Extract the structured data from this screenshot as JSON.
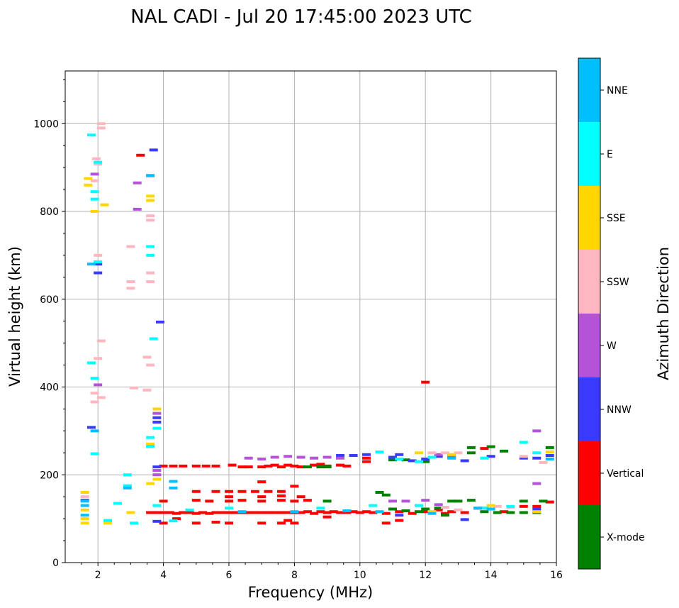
{
  "chart_data": {
    "type": "scatter",
    "title": "NAL CADI - Jul 20 17:45:00 2023 UTC",
    "xlabel": "Frequency (MHz)",
    "ylabel": "Virtual height (km)",
    "xlim": [
      1,
      16
    ],
    "ylim": [
      0,
      1120
    ],
    "xticks": [
      2,
      4,
      6,
      8,
      10,
      12,
      14,
      16
    ],
    "yticks": [
      0,
      200,
      400,
      600,
      800,
      1000
    ],
    "grid": true,
    "colorbar": {
      "label": "Azimuth Direction",
      "categories": [
        {
          "name": "X-mode",
          "color": "#008000"
        },
        {
          "name": "Vertical",
          "color": "#ff0000"
        },
        {
          "name": "NNW",
          "color": "#3a3aff"
        },
        {
          "name": "W",
          "color": "#b452d8"
        },
        {
          "name": "SSW",
          "color": "#ffb6c1"
        },
        {
          "name": "SSE",
          "color": "#ffd700"
        },
        {
          "name": "E",
          "color": "#00ffff"
        },
        {
          "name": "NNE",
          "color": "#00bfff"
        }
      ]
    },
    "series": [
      {
        "name": "Vertical",
        "points": [
          [
            3.6,
            114
          ],
          [
            3.8,
            114
          ],
          [
            4.0,
            114
          ],
          [
            4.2,
            114
          ],
          [
            4.4,
            112
          ],
          [
            4.6,
            114
          ],
          [
            4.8,
            114
          ],
          [
            5.0,
            112
          ],
          [
            5.2,
            114
          ],
          [
            5.4,
            112
          ],
          [
            5.6,
            114
          ],
          [
            5.8,
            114
          ],
          [
            6.0,
            114
          ],
          [
            6.2,
            114
          ],
          [
            6.4,
            114
          ],
          [
            6.6,
            114
          ],
          [
            6.8,
            114
          ],
          [
            7.0,
            114
          ],
          [
            7.2,
            114
          ],
          [
            7.4,
            114
          ],
          [
            7.6,
            114
          ],
          [
            7.8,
            114
          ],
          [
            8.0,
            114
          ],
          [
            8.2,
            114
          ],
          [
            8.4,
            116
          ],
          [
            8.6,
            112
          ],
          [
            8.8,
            116
          ],
          [
            9.0,
            114
          ],
          [
            9.2,
            116
          ],
          [
            9.4,
            114
          ],
          [
            9.6,
            114
          ],
          [
            9.8,
            116
          ],
          [
            10.0,
            114
          ],
          [
            10.2,
            116
          ],
          [
            10.4,
            114
          ],
          [
            10.8,
            112
          ],
          [
            11.2,
            116
          ],
          [
            11.6,
            112
          ],
          [
            12.0,
            116
          ],
          [
            12.4,
            120
          ],
          [
            12.6,
            112
          ],
          [
            12.8,
            116
          ],
          [
            13.2,
            114
          ],
          [
            13.6,
            124
          ],
          [
            13.8,
            124
          ],
          [
            14.4,
            116
          ],
          [
            15.0,
            128
          ],
          [
            15.4,
            128
          ],
          [
            15.8,
            138
          ],
          [
            4.0,
            220
          ],
          [
            4.3,
            220
          ],
          [
            4.6,
            220
          ],
          [
            5.0,
            220
          ],
          [
            5.3,
            220
          ],
          [
            5.6,
            220
          ],
          [
            6.1,
            222
          ],
          [
            6.4,
            218
          ],
          [
            6.6,
            218
          ],
          [
            7.0,
            218
          ],
          [
            7.2,
            220
          ],
          [
            7.4,
            222
          ],
          [
            7.6,
            218
          ],
          [
            7.8,
            222
          ],
          [
            8.0,
            220
          ],
          [
            8.2,
            218
          ],
          [
            8.6,
            222
          ],
          [
            8.8,
            224
          ],
          [
            9.0,
            220
          ],
          [
            9.4,
            222
          ],
          [
            9.6,
            220
          ],
          [
            10.2,
            230
          ],
          [
            10.2,
            238
          ],
          [
            5.0,
            142
          ],
          [
            5.4,
            140
          ],
          [
            6.0,
            140
          ],
          [
            6.4,
            142
          ],
          [
            7.0,
            140
          ],
          [
            7.6,
            142
          ],
          [
            8.0,
            140
          ],
          [
            8.4,
            142
          ],
          [
            6.0,
            150
          ],
          [
            7.0,
            150
          ],
          [
            7.6,
            152
          ],
          [
            8.2,
            150
          ],
          [
            5.0,
            162
          ],
          [
            6.0,
            162
          ],
          [
            6.4,
            162
          ],
          [
            6.8,
            162
          ],
          [
            7.2,
            162
          ],
          [
            7.6,
            162
          ],
          [
            8.0,
            174
          ],
          [
            7.0,
            184
          ],
          [
            5.6,
            162
          ],
          [
            4.0,
            90
          ],
          [
            5.0,
            90
          ],
          [
            5.6,
            92
          ],
          [
            6.0,
            90
          ],
          [
            7.0,
            90
          ],
          [
            7.6,
            90
          ],
          [
            7.8,
            96
          ],
          [
            8.0,
            90
          ],
          [
            10.8,
            90
          ],
          [
            11.2,
            96
          ],
          [
            12.0,
            411
          ],
          [
            3.3,
            928
          ],
          [
            4.0,
            140
          ],
          [
            4.4,
            100
          ],
          [
            9.0,
            104
          ],
          [
            13.8,
            260
          ]
        ]
      },
      {
        "name": "X-mode",
        "points": [
          [
            8.4,
            218
          ],
          [
            8.8,
            218
          ],
          [
            9.0,
            218
          ],
          [
            11.0,
            234
          ],
          [
            11.4,
            234
          ],
          [
            12.0,
            230
          ],
          [
            13.4,
            262
          ],
          [
            13.4,
            250
          ],
          [
            14.0,
            264
          ],
          [
            14.4,
            254
          ],
          [
            15.8,
            262
          ],
          [
            11.0,
            122
          ],
          [
            11.4,
            118
          ],
          [
            11.8,
            116
          ],
          [
            12.0,
            122
          ],
          [
            12.4,
            124
          ],
          [
            12.8,
            140
          ],
          [
            13.0,
            140
          ],
          [
            13.4,
            142
          ],
          [
            13.8,
            116
          ],
          [
            14.2,
            114
          ],
          [
            14.6,
            114
          ],
          [
            15.0,
            114
          ],
          [
            15.4,
            114
          ],
          [
            15.0,
            140
          ],
          [
            15.6,
            140
          ],
          [
            10.6,
            160
          ],
          [
            10.8,
            154
          ],
          [
            9.0,
            140
          ],
          [
            12.6,
            108
          ]
        ]
      },
      {
        "name": "NNW",
        "points": [
          [
            9.4,
            244
          ],
          [
            9.8,
            244
          ],
          [
            10.2,
            246
          ],
          [
            11.0,
            240
          ],
          [
            11.2,
            246
          ],
          [
            11.6,
            232
          ],
          [
            12.0,
            236
          ],
          [
            12.4,
            242
          ],
          [
            12.8,
            240
          ],
          [
            13.2,
            232
          ],
          [
            14.0,
            242
          ],
          [
            15.0,
            238
          ],
          [
            15.4,
            238
          ],
          [
            15.8,
            244
          ],
          [
            3.8,
            94
          ],
          [
            3.8,
            218
          ],
          [
            3.8,
            320
          ],
          [
            3.8,
            330
          ],
          [
            2.0,
            660
          ],
          [
            2.0,
            680
          ],
          [
            3.7,
            940
          ],
          [
            3.9,
            548
          ],
          [
            1.8,
            308
          ],
          [
            1.6,
            142
          ],
          [
            11.2,
            108
          ],
          [
            13.2,
            98
          ],
          [
            15.4,
            122
          ]
        ]
      },
      {
        "name": "W",
        "points": [
          [
            6.6,
            238
          ],
          [
            7.0,
            236
          ],
          [
            7.4,
            240
          ],
          [
            7.8,
            242
          ],
          [
            8.2,
            240
          ],
          [
            8.6,
            238
          ],
          [
            9.0,
            240
          ],
          [
            9.4,
            238
          ],
          [
            12.4,
            246
          ],
          [
            12.8,
            244
          ],
          [
            15.4,
            300
          ],
          [
            15.4,
            180
          ],
          [
            3.8,
            210
          ],
          [
            3.8,
            200
          ],
          [
            3.8,
            340
          ],
          [
            2.0,
            405
          ],
          [
            11.0,
            140
          ],
          [
            11.4,
            140
          ],
          [
            12.0,
            142
          ],
          [
            12.4,
            132
          ],
          [
            3.2,
            865
          ],
          [
            3.2,
            805
          ],
          [
            1.9,
            885
          ]
        ]
      },
      {
        "name": "SSW",
        "points": [
          [
            2.1,
            1000
          ],
          [
            2.1,
            990
          ],
          [
            1.95,
            920
          ],
          [
            2.0,
            908
          ],
          [
            1.9,
            870
          ],
          [
            3.6,
            880
          ],
          [
            3.6,
            780
          ],
          [
            3.6,
            790
          ],
          [
            3.6,
            660
          ],
          [
            3.6,
            640
          ],
          [
            2.0,
            700
          ],
          [
            2.1,
            505
          ],
          [
            2.0,
            465
          ],
          [
            3.5,
            468
          ],
          [
            3.6,
            450
          ],
          [
            1.9,
            386
          ],
          [
            1.9,
            366
          ],
          [
            2.1,
            376
          ],
          [
            3.0,
            720
          ],
          [
            3.0,
            640
          ],
          [
            3.0,
            625
          ],
          [
            3.1,
            398
          ],
          [
            3.5,
            393
          ],
          [
            12.2,
            250
          ],
          [
            12.6,
            250
          ],
          [
            13.0,
            250
          ],
          [
            15.0,
            242
          ],
          [
            15.6,
            228
          ],
          [
            1.6,
            150
          ],
          [
            12.6,
            126
          ],
          [
            14.2,
            128
          ],
          [
            13.0,
            120
          ],
          [
            14.6,
            126
          ]
        ]
      },
      {
        "name": "SSE",
        "points": [
          [
            1.6,
            90
          ],
          [
            1.6,
            100
          ],
          [
            1.6,
            120
          ],
          [
            1.6,
            160
          ],
          [
            1.7,
            875
          ],
          [
            1.7,
            860
          ],
          [
            1.9,
            800
          ],
          [
            2.2,
            815
          ],
          [
            3.6,
            835
          ],
          [
            3.6,
            825
          ],
          [
            3.6,
            180
          ],
          [
            3.8,
            190
          ],
          [
            3.8,
            350
          ],
          [
            2.3,
            90
          ],
          [
            3.6,
            270
          ],
          [
            3.0,
            114
          ],
          [
            11.8,
            250
          ],
          [
            12.8,
            246
          ],
          [
            15.8,
            252
          ],
          [
            15.4,
            116
          ],
          [
            14.0,
            130
          ],
          [
            12.2,
            116
          ]
        ]
      },
      {
        "name": "E",
        "points": [
          [
            1.8,
            974
          ],
          [
            2.0,
            912
          ],
          [
            1.9,
            845
          ],
          [
            1.9,
            828
          ],
          [
            2.0,
            685
          ],
          [
            1.9,
            420
          ],
          [
            1.8,
            455
          ],
          [
            3.6,
            700
          ],
          [
            3.6,
            720
          ],
          [
            3.7,
            510
          ],
          [
            3.6,
            285
          ],
          [
            3.6,
            265
          ],
          [
            3.8,
            306
          ],
          [
            1.9,
            248
          ],
          [
            2.3,
            96
          ],
          [
            2.6,
            135
          ],
          [
            2.9,
            200
          ],
          [
            2.9,
            175
          ],
          [
            3.1,
            90
          ],
          [
            4.3,
            95
          ],
          [
            10.6,
            252
          ],
          [
            11.2,
            236
          ],
          [
            11.8,
            230
          ],
          [
            12.2,
            240
          ],
          [
            13.8,
            238
          ],
          [
            15.0,
            274
          ],
          [
            15.4,
            250
          ],
          [
            4.8,
            120
          ],
          [
            6.0,
            124
          ],
          [
            8.8,
            124
          ],
          [
            10.4,
            130
          ],
          [
            11.8,
            130
          ],
          [
            13.8,
            124
          ],
          [
            14.6,
            128
          ],
          [
            3.8,
            130
          ]
        ]
      },
      {
        "name": "NNE",
        "points": [
          [
            1.6,
            140
          ],
          [
            1.6,
            130
          ],
          [
            1.6,
            108
          ],
          [
            1.9,
            300
          ],
          [
            3.6,
            882
          ],
          [
            1.8,
            680
          ],
          [
            2.9,
            170
          ],
          [
            4.3,
            185
          ],
          [
            4.3,
            170
          ],
          [
            12.8,
            238
          ],
          [
            15.8,
            236
          ],
          [
            13.6,
            124
          ],
          [
            14.0,
            122
          ],
          [
            6.4,
            116
          ],
          [
            8.0,
            116
          ],
          [
            9.6,
            118
          ],
          [
            10.6,
            116
          ],
          [
            12.2,
            112
          ]
        ]
      }
    ]
  }
}
